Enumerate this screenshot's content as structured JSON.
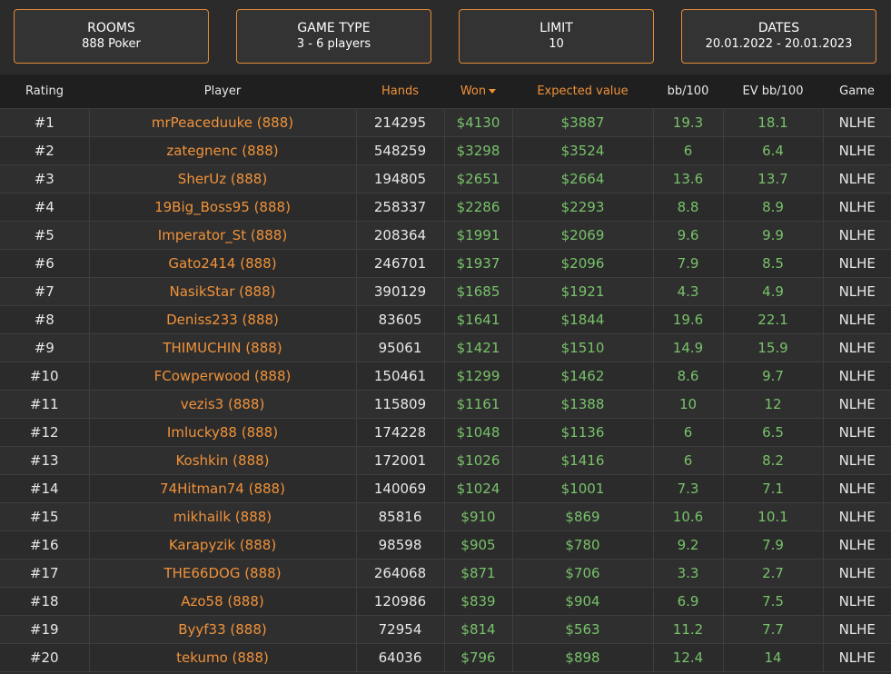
{
  "filters": [
    {
      "title": "ROOMS",
      "value": "888 Poker"
    },
    {
      "title": "GAME TYPE",
      "value": "3 - 6 players"
    },
    {
      "title": "LIMIT",
      "value": "10"
    },
    {
      "title": "DATES",
      "value": "20.01.2022 - 20.01.2023"
    }
  ],
  "columns": {
    "rating": "Rating",
    "player": "Player",
    "hands": "Hands",
    "won": "Won",
    "expected": "Expected value",
    "bb100": "bb/100",
    "evbb100": "EV bb/100",
    "game": "Game"
  },
  "sort_indicator": "chevron-down-icon",
  "colors": {
    "accent": "#f0923a",
    "positive": "#78c26a",
    "background": "#2b2b2b"
  },
  "rows": [
    {
      "rank": "#1",
      "player": "mrPeaceduuke (888)",
      "hands": "214295",
      "won": "$4130",
      "ev": "$3887",
      "bb": "19.3",
      "evbb": "18.1",
      "game": "NLHE"
    },
    {
      "rank": "#2",
      "player": "zategnenc (888)",
      "hands": "548259",
      "won": "$3298",
      "ev": "$3524",
      "bb": "6",
      "evbb": "6.4",
      "game": "NLHE"
    },
    {
      "rank": "#3",
      "player": "SherUz (888)",
      "hands": "194805",
      "won": "$2651",
      "ev": "$2664",
      "bb": "13.6",
      "evbb": "13.7",
      "game": "NLHE"
    },
    {
      "rank": "#4",
      "player": "19Big_Boss95 (888)",
      "hands": "258337",
      "won": "$2286",
      "ev": "$2293",
      "bb": "8.8",
      "evbb": "8.9",
      "game": "NLHE"
    },
    {
      "rank": "#5",
      "player": "Imperator_St (888)",
      "hands": "208364",
      "won": "$1991",
      "ev": "$2069",
      "bb": "9.6",
      "evbb": "9.9",
      "game": "NLHE"
    },
    {
      "rank": "#6",
      "player": "Gato2414 (888)",
      "hands": "246701",
      "won": "$1937",
      "ev": "$2096",
      "bb": "7.9",
      "evbb": "8.5",
      "game": "NLHE"
    },
    {
      "rank": "#7",
      "player": "NasikStar (888)",
      "hands": "390129",
      "won": "$1685",
      "ev": "$1921",
      "bb": "4.3",
      "evbb": "4.9",
      "game": "NLHE"
    },
    {
      "rank": "#8",
      "player": "Deniss233 (888)",
      "hands": "83605",
      "won": "$1641",
      "ev": "$1844",
      "bb": "19.6",
      "evbb": "22.1",
      "game": "NLHE"
    },
    {
      "rank": "#9",
      "player": "THIMUCHIN (888)",
      "hands": "95061",
      "won": "$1421",
      "ev": "$1510",
      "bb": "14.9",
      "evbb": "15.9",
      "game": "NLHE"
    },
    {
      "rank": "#10",
      "player": "FCowperwood (888)",
      "hands": "150461",
      "won": "$1299",
      "ev": "$1462",
      "bb": "8.6",
      "evbb": "9.7",
      "game": "NLHE"
    },
    {
      "rank": "#11",
      "player": "vezis3 (888)",
      "hands": "115809",
      "won": "$1161",
      "ev": "$1388",
      "bb": "10",
      "evbb": "12",
      "game": "NLHE"
    },
    {
      "rank": "#12",
      "player": "Imlucky88 (888)",
      "hands": "174228",
      "won": "$1048",
      "ev": "$1136",
      "bb": "6",
      "evbb": "6.5",
      "game": "NLHE"
    },
    {
      "rank": "#13",
      "player": "Koshkin (888)",
      "hands": "172001",
      "won": "$1026",
      "ev": "$1416",
      "bb": "6",
      "evbb": "8.2",
      "game": "NLHE"
    },
    {
      "rank": "#14",
      "player": "74Hitman74 (888)",
      "hands": "140069",
      "won": "$1024",
      "ev": "$1001",
      "bb": "7.3",
      "evbb": "7.1",
      "game": "NLHE"
    },
    {
      "rank": "#15",
      "player": "mikhailk (888)",
      "hands": "85816",
      "won": "$910",
      "ev": "$869",
      "bb": "10.6",
      "evbb": "10.1",
      "game": "NLHE"
    },
    {
      "rank": "#16",
      "player": "Karapyzik (888)",
      "hands": "98598",
      "won": "$905",
      "ev": "$780",
      "bb": "9.2",
      "evbb": "7.9",
      "game": "NLHE"
    },
    {
      "rank": "#17",
      "player": "THE66DOG (888)",
      "hands": "264068",
      "won": "$871",
      "ev": "$706",
      "bb": "3.3",
      "evbb": "2.7",
      "game": "NLHE"
    },
    {
      "rank": "#18",
      "player": "Azo58 (888)",
      "hands": "120986",
      "won": "$839",
      "ev": "$904",
      "bb": "6.9",
      "evbb": "7.5",
      "game": "NLHE"
    },
    {
      "rank": "#19",
      "player": "Byyf33 (888)",
      "hands": "72954",
      "won": "$814",
      "ev": "$563",
      "bb": "11.2",
      "evbb": "7.7",
      "game": "NLHE"
    },
    {
      "rank": "#20",
      "player": "tekumo (888)",
      "hands": "64036",
      "won": "$796",
      "ev": "$898",
      "bb": "12.4",
      "evbb": "14",
      "game": "NLHE"
    }
  ]
}
